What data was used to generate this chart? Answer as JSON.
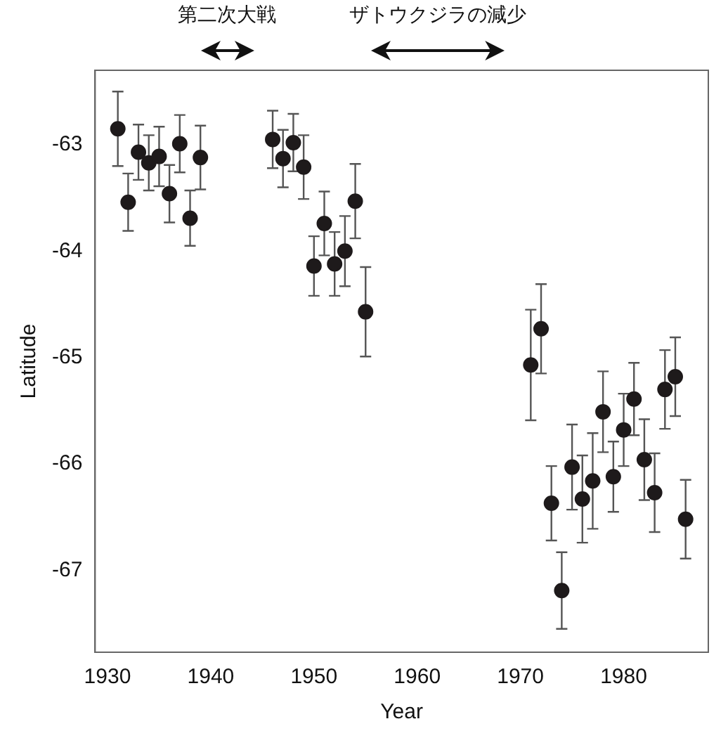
{
  "chart_data": {
    "type": "scatter",
    "xlabel": "Year",
    "ylabel": "Latitude",
    "x": [
      1931,
      1932,
      1933,
      1934,
      1935,
      1936,
      1937,
      1938,
      1939,
      1946,
      1947,
      1948,
      1949,
      1950,
      1951,
      1952,
      1953,
      1954,
      1955,
      1971,
      1972,
      1973,
      1974,
      1975,
      1976,
      1977,
      1978,
      1979,
      1980,
      1981,
      1982,
      1983,
      1984,
      1985,
      1986
    ],
    "values": [
      -62.85,
      -63.54,
      -63.07,
      -63.17,
      -63.11,
      -63.46,
      -62.99,
      -63.69,
      -63.12,
      -62.95,
      -63.13,
      -62.98,
      -63.21,
      -64.14,
      -63.74,
      -64.12,
      -64.0,
      -63.53,
      -64.57,
      -65.07,
      -64.73,
      -66.37,
      -67.19,
      -66.03,
      -66.33,
      -66.16,
      -65.51,
      -66.12,
      -65.68,
      -65.39,
      -65.96,
      -66.27,
      -65.3,
      -65.18,
      -66.52
    ],
    "errors": [
      0.35,
      0.27,
      0.26,
      0.26,
      0.28,
      0.27,
      0.27,
      0.26,
      0.3,
      0.27,
      0.27,
      0.27,
      0.3,
      0.28,
      0.3,
      0.3,
      0.33,
      0.35,
      0.42,
      0.52,
      0.42,
      0.35,
      0.36,
      0.4,
      0.41,
      0.45,
      0.38,
      0.33,
      0.34,
      0.34,
      0.38,
      0.37,
      0.37,
      0.37,
      0.37
    ],
    "color": "#1e1a1b",
    "marker": "circle",
    "xlim": [
      1928.8,
      1988.2
    ],
    "ylim": [
      -67.77,
      -62.3
    ],
    "xticks": [
      1930,
      1940,
      1950,
      1960,
      1970,
      1980
    ],
    "yticks": [
      -67,
      -66,
      -65,
      -64,
      -63
    ],
    "annotations": [
      "第二次大戦",
      "ザトウクジラの減少"
    ]
  }
}
